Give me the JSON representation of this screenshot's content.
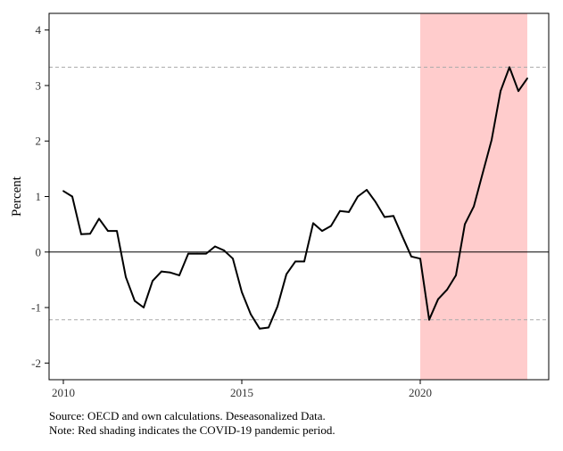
{
  "chart_data": {
    "type": "line",
    "title": "",
    "xlabel": "",
    "ylabel": "Percent",
    "xlim": [
      2009.6,
      2023.6
    ],
    "ylim": [
      -2.3,
      4.3
    ],
    "x_ticks": [
      2010,
      2015,
      2020
    ],
    "y_ticks": [
      -2,
      -1,
      0,
      1,
      2,
      3,
      4
    ],
    "grid": false,
    "legend": "none",
    "shaded_region": {
      "x_start": 2020.0,
      "x_end": 2023.0,
      "color": "#ffcccc"
    },
    "reference_lines": [
      {
        "y": 3.33,
        "style": "dashed",
        "color": "#aaaaaa"
      },
      {
        "y": 0,
        "style": "solid",
        "color": "#000000"
      },
      {
        "y": -1.22,
        "style": "dashed",
        "color": "#aaaaaa"
      }
    ],
    "series": [
      {
        "color": "#000000",
        "points": [
          [
            2010.0,
            1.1
          ],
          [
            2010.25,
            1.0
          ],
          [
            2010.5,
            0.32
          ],
          [
            2010.75,
            0.33
          ],
          [
            2011.0,
            0.6
          ],
          [
            2011.25,
            0.38
          ],
          [
            2011.5,
            0.38
          ],
          [
            2011.75,
            -0.45
          ],
          [
            2012.0,
            -0.88
          ],
          [
            2012.25,
            -1.0
          ],
          [
            2012.5,
            -0.52
          ],
          [
            2012.75,
            -0.35
          ],
          [
            2013.0,
            -0.37
          ],
          [
            2013.25,
            -0.42
          ],
          [
            2013.5,
            -0.03
          ],
          [
            2013.75,
            -0.03
          ],
          [
            2014.0,
            -0.03
          ],
          [
            2014.25,
            0.1
          ],
          [
            2014.5,
            0.03
          ],
          [
            2014.75,
            -0.12
          ],
          [
            2015.0,
            -0.72
          ],
          [
            2015.25,
            -1.12
          ],
          [
            2015.5,
            -1.38
          ],
          [
            2015.75,
            -1.36
          ],
          [
            2016.0,
            -0.98
          ],
          [
            2016.25,
            -0.4
          ],
          [
            2016.5,
            -0.17
          ],
          [
            2016.75,
            -0.17
          ],
          [
            2017.0,
            0.52
          ],
          [
            2017.25,
            0.38
          ],
          [
            2017.5,
            0.47
          ],
          [
            2017.75,
            0.74
          ],
          [
            2018.0,
            0.72
          ],
          [
            2018.25,
            1.0
          ],
          [
            2018.5,
            1.12
          ],
          [
            2018.75,
            0.9
          ],
          [
            2019.0,
            0.63
          ],
          [
            2019.25,
            0.65
          ],
          [
            2019.5,
            0.28
          ],
          [
            2019.75,
            -0.08
          ],
          [
            2020.0,
            -0.12
          ],
          [
            2020.25,
            -1.22
          ],
          [
            2020.5,
            -0.85
          ],
          [
            2020.75,
            -0.68
          ],
          [
            2021.0,
            -0.42
          ],
          [
            2021.25,
            0.5
          ],
          [
            2021.5,
            0.82
          ],
          [
            2021.75,
            1.42
          ],
          [
            2022.0,
            2.02
          ],
          [
            2022.25,
            2.9
          ],
          [
            2022.5,
            3.33
          ],
          [
            2022.75,
            2.9
          ],
          [
            2023.0,
            3.13
          ]
        ]
      }
    ]
  },
  "notes": {
    "source": "Source: OECD and own calculations. Deseasonalized Data.",
    "note": "Note: Red shading indicates the COVID-19 pandemic period."
  }
}
